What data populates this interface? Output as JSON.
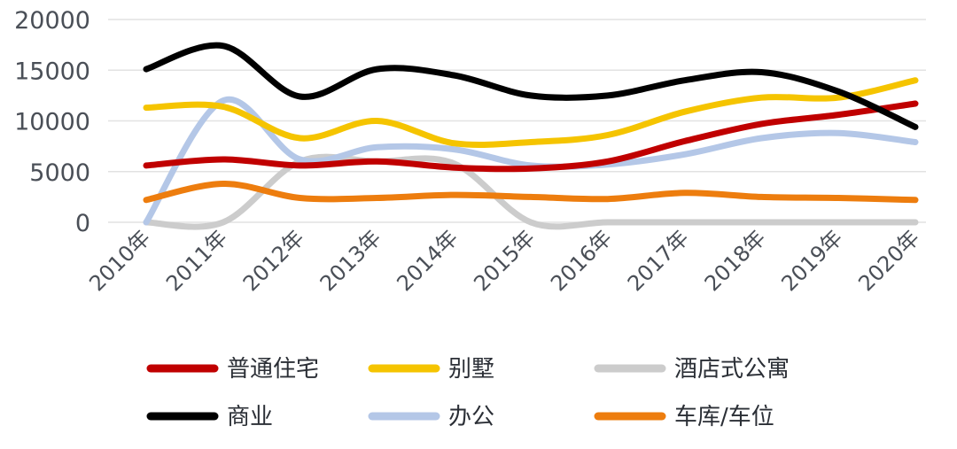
{
  "chart_data": {
    "type": "line",
    "smooth": true,
    "categories": [
      "2010年",
      "2011年",
      "2012年",
      "2013年",
      "2014年",
      "2015年",
      "2016年",
      "2017年",
      "2018年",
      "2019年",
      "2020年"
    ],
    "yticks": [
      "20000",
      "15000",
      "10000",
      "5000",
      "0"
    ],
    "ylim": [
      0,
      20000
    ],
    "grid": true,
    "legend_position": "bottom",
    "series": [
      {
        "name": "普通住宅",
        "color": "#c00000",
        "values": [
          5600,
          6200,
          5600,
          6000,
          5400,
          5300,
          6000,
          8000,
          9700,
          10600,
          11700
        ]
      },
      {
        "name": "别墅",
        "color": "#f5c400",
        "values": [
          11300,
          11400,
          8300,
          10000,
          7800,
          7900,
          8600,
          10900,
          12300,
          12300,
          14000
        ]
      },
      {
        "name": "酒店式公寓",
        "color": "#cccccc",
        "values": [
          0,
          0,
          6000,
          6000,
          5800,
          0,
          0,
          0,
          0,
          0,
          0
        ]
      },
      {
        "name": "商业",
        "color": "#000000",
        "values": [
          15100,
          17400,
          12400,
          15100,
          14500,
          12500,
          12500,
          14000,
          14800,
          12900,
          9400
        ]
      },
      {
        "name": "办公",
        "color": "#b4c7e7",
        "values": [
          0,
          12000,
          6200,
          7400,
          7200,
          5600,
          5700,
          6700,
          8300,
          8800,
          7900
        ]
      },
      {
        "name": "车库/车位",
        "color": "#ed7d0e",
        "values": [
          2200,
          3800,
          2400,
          2400,
          2700,
          2500,
          2300,
          2900,
          2500,
          2400,
          2200
        ]
      }
    ]
  }
}
